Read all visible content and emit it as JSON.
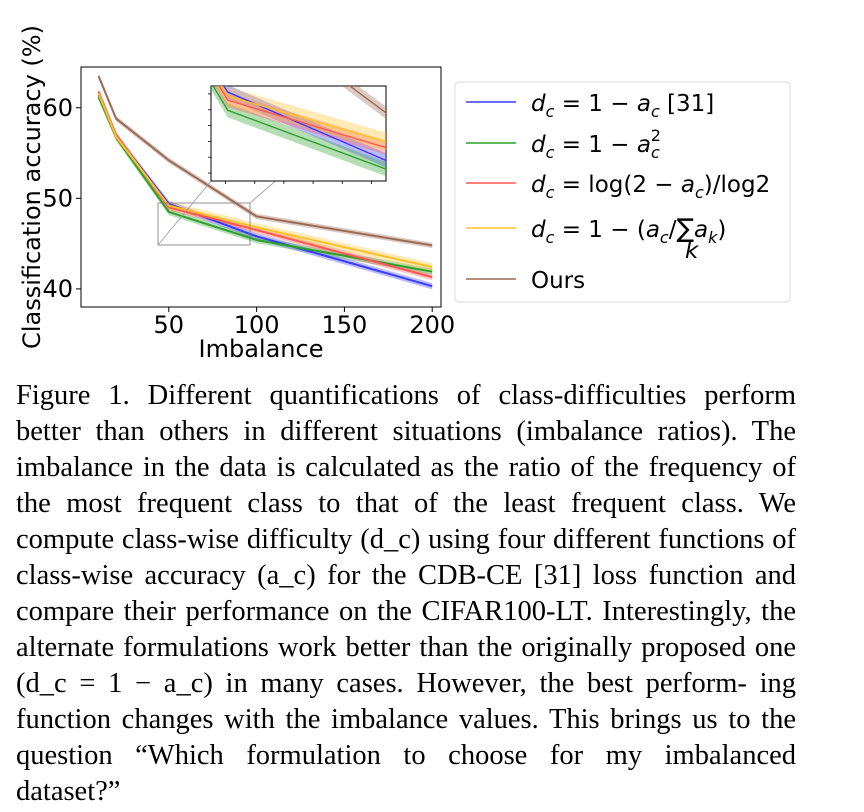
{
  "chart_data": {
    "type": "line",
    "xlabel": "Imbalance",
    "ylabel": "Classification accuracy (%)",
    "xlim": [
      0,
      205
    ],
    "ylim": [
      38,
      64.5
    ],
    "xticks": [
      "50",
      "100",
      "150",
      "200"
    ],
    "yticks": [
      "40",
      "50",
      "60"
    ],
    "x": [
      10,
      20,
      50,
      100,
      200
    ],
    "series": [
      {
        "name": "d_c = 1 − a_c [31]",
        "color": "#3b3bff",
        "values": [
          61.4,
          56.9,
          49.4,
          45.8,
          40.3
        ],
        "band": 0.35
      },
      {
        "name": "d_c = 1 − a_c^2",
        "color": "#2ca02c",
        "values": [
          61.2,
          56.7,
          48.5,
          45.4,
          41.9
        ],
        "band": 0.35
      },
      {
        "name": "d_c = log(2 − a_c)/log2",
        "color": "#ff5555",
        "values": [
          61.8,
          57.0,
          49.0,
          46.5,
          41.3
        ],
        "band": 0.35
      },
      {
        "name": "d_c = 1 − (a_c/Σ_k a_k)",
        "color": "#ffbf2a",
        "values": [
          61.6,
          56.8,
          49.2,
          46.8,
          42.4
        ],
        "band": 0.45
      },
      {
        "name": "Ours",
        "color": "#9c6a55",
        "values": [
          63.5,
          58.8,
          54.2,
          48.0,
          44.8
        ],
        "band": 0.3
      }
    ],
    "legend_position": "right-outside",
    "grid": false,
    "inset": {
      "xlim": [
        45,
        97
      ],
      "ylim": [
        45,
        49.7
      ]
    }
  },
  "caption": {
    "lines": [
      "Figure 1. Different quantifications of class-difficulties perform",
      "better than others in different situations (imbalance ratios). The",
      "imbalance in the data is calculated as the ratio of the frequency",
      "of the most frequent class to that of the least frequent class. We",
      "compute class-wise difficulty (d_c) using four different functions of",
      "class-wise accuracy (a_c) for the CDB-CE [31] loss function and",
      "compare their performance on the CIFAR100-LT. Interestingly,",
      "the alternate formulations work better than the originally proposed",
      "one (d_c = 1 − a_c) in many cases. However, the best perform-",
      "ing function changes with the imbalance values. This brings us",
      "to the question “Which formulation to choose for my imbalanced",
      "dataset?”"
    ]
  }
}
